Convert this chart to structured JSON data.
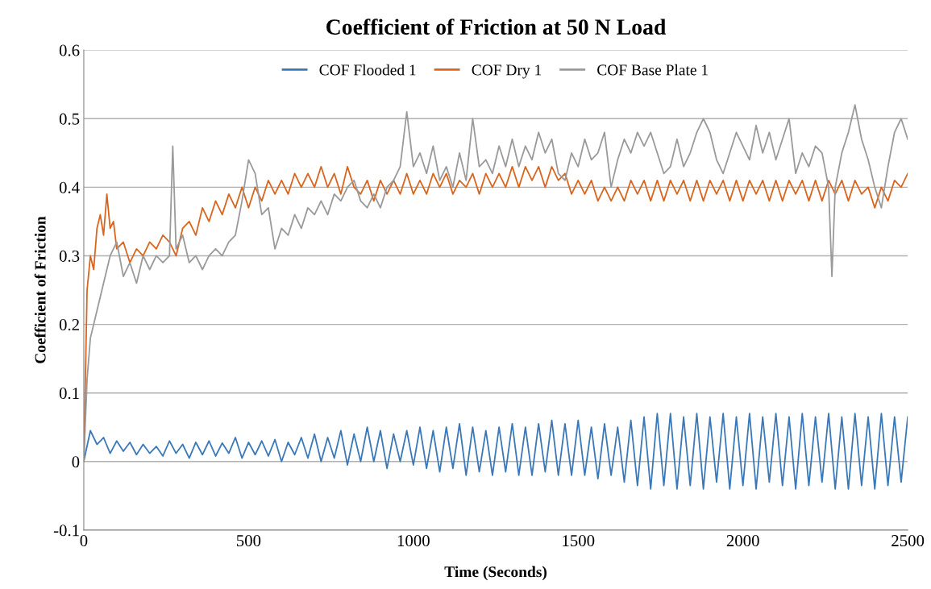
{
  "chart_data": {
    "type": "line",
    "title": "Coefficient of Friction at 50 N Load",
    "xlabel": "Time (Seconds)",
    "ylabel": "Coefficient of Friction",
    "xlim": [
      0,
      2500
    ],
    "xticks": [
      0,
      500,
      1000,
      1500,
      2000,
      2500
    ],
    "ylim": [
      -0.1,
      0.6
    ],
    "yticks": [
      -0.1,
      0,
      0.1,
      0.2,
      0.3,
      0.4,
      0.5,
      0.6
    ],
    "grid": "y",
    "legend": "top",
    "series": [
      {
        "name": "COF Flooded 1",
        "color": "#3a78b8",
        "x": [
          0,
          20,
          40,
          60,
          80,
          100,
          120,
          140,
          160,
          180,
          200,
          220,
          240,
          260,
          280,
          300,
          320,
          340,
          360,
          380,
          400,
          420,
          440,
          460,
          480,
          500,
          520,
          540,
          560,
          580,
          600,
          620,
          640,
          660,
          680,
          700,
          720,
          740,
          760,
          780,
          800,
          820,
          840,
          860,
          880,
          900,
          920,
          940,
          960,
          980,
          1000,
          1020,
          1040,
          1060,
          1080,
          1100,
          1120,
          1140,
          1160,
          1180,
          1200,
          1220,
          1240,
          1260,
          1280,
          1300,
          1320,
          1340,
          1360,
          1380,
          1400,
          1420,
          1440,
          1460,
          1480,
          1500,
          1520,
          1540,
          1560,
          1580,
          1600,
          1620,
          1640,
          1660,
          1680,
          1700,
          1720,
          1740,
          1760,
          1780,
          1800,
          1820,
          1840,
          1860,
          1880,
          1900,
          1920,
          1940,
          1960,
          1980,
          2000,
          2020,
          2040,
          2060,
          2080,
          2100,
          2120,
          2140,
          2160,
          2180,
          2200,
          2220,
          2240,
          2260,
          2280,
          2300,
          2320,
          2340,
          2360,
          2380,
          2400,
          2420,
          2440,
          2460,
          2480,
          2500
        ],
        "values": [
          0,
          0.045,
          0.025,
          0.035,
          0.012,
          0.03,
          0.015,
          0.028,
          0.01,
          0.025,
          0.012,
          0.022,
          0.008,
          0.03,
          0.012,
          0.025,
          0.005,
          0.028,
          0.01,
          0.03,
          0.008,
          0.027,
          0.012,
          0.035,
          0.005,
          0.028,
          0.01,
          0.03,
          0.008,
          0.032,
          0.0,
          0.028,
          0.01,
          0.035,
          0.005,
          0.04,
          0.0,
          0.035,
          0.005,
          0.045,
          -0.005,
          0.04,
          0.0,
          0.05,
          0.0,
          0.045,
          -0.01,
          0.04,
          0.0,
          0.045,
          -0.005,
          0.05,
          -0.01,
          0.045,
          -0.015,
          0.05,
          -0.01,
          0.055,
          -0.02,
          0.05,
          -0.015,
          0.045,
          -0.02,
          0.05,
          -0.015,
          0.055,
          -0.02,
          0.05,
          -0.02,
          0.055,
          -0.015,
          0.06,
          -0.02,
          0.055,
          -0.02,
          0.06,
          -0.02,
          0.05,
          -0.025,
          0.055,
          -0.02,
          0.05,
          -0.03,
          0.06,
          -0.035,
          0.065,
          -0.04,
          0.07,
          -0.035,
          0.07,
          -0.04,
          0.065,
          -0.035,
          0.07,
          -0.04,
          0.065,
          -0.03,
          0.07,
          -0.04,
          0.065,
          -0.035,
          0.07,
          -0.04,
          0.065,
          -0.03,
          0.07,
          -0.035,
          0.065,
          -0.04,
          0.07,
          -0.035,
          0.065,
          -0.03,
          0.07,
          -0.04,
          0.065,
          -0.04,
          0.07,
          -0.035,
          0.065,
          -0.04,
          0.07,
          -0.035,
          0.065,
          -0.03,
          0.065
        ]
      },
      {
        "name": "COF Dry 1",
        "color": "#d9661f",
        "x": [
          0,
          10,
          20,
          30,
          40,
          50,
          60,
          70,
          80,
          90,
          100,
          120,
          140,
          160,
          180,
          200,
          220,
          240,
          260,
          280,
          300,
          320,
          340,
          360,
          380,
          400,
          420,
          440,
          460,
          480,
          500,
          520,
          540,
          560,
          580,
          600,
          620,
          640,
          660,
          680,
          700,
          720,
          740,
          760,
          780,
          800,
          820,
          840,
          860,
          880,
          900,
          920,
          940,
          960,
          980,
          1000,
          1020,
          1040,
          1060,
          1080,
          1100,
          1120,
          1140,
          1160,
          1180,
          1200,
          1220,
          1240,
          1260,
          1280,
          1300,
          1320,
          1340,
          1360,
          1380,
          1400,
          1420,
          1440,
          1460,
          1480,
          1500,
          1520,
          1540,
          1560,
          1580,
          1600,
          1620,
          1640,
          1660,
          1680,
          1700,
          1720,
          1740,
          1760,
          1780,
          1800,
          1820,
          1840,
          1860,
          1880,
          1900,
          1920,
          1940,
          1960,
          1980,
          2000,
          2020,
          2040,
          2060,
          2080,
          2100,
          2120,
          2140,
          2160,
          2180,
          2200,
          2220,
          2240,
          2260,
          2280,
          2300,
          2320,
          2340,
          2360,
          2380,
          2400,
          2420,
          2440,
          2460,
          2480,
          2500
        ],
        "values": [
          0.0,
          0.25,
          0.3,
          0.28,
          0.34,
          0.36,
          0.33,
          0.39,
          0.34,
          0.35,
          0.31,
          0.32,
          0.29,
          0.31,
          0.3,
          0.32,
          0.31,
          0.33,
          0.32,
          0.3,
          0.34,
          0.35,
          0.33,
          0.37,
          0.35,
          0.38,
          0.36,
          0.39,
          0.37,
          0.4,
          0.37,
          0.4,
          0.38,
          0.41,
          0.39,
          0.41,
          0.39,
          0.42,
          0.4,
          0.42,
          0.4,
          0.43,
          0.4,
          0.42,
          0.39,
          0.43,
          0.4,
          0.39,
          0.41,
          0.38,
          0.41,
          0.39,
          0.41,
          0.39,
          0.42,
          0.39,
          0.41,
          0.39,
          0.42,
          0.4,
          0.42,
          0.39,
          0.41,
          0.4,
          0.42,
          0.39,
          0.42,
          0.4,
          0.42,
          0.4,
          0.43,
          0.4,
          0.43,
          0.41,
          0.43,
          0.4,
          0.43,
          0.41,
          0.42,
          0.39,
          0.41,
          0.39,
          0.41,
          0.38,
          0.4,
          0.38,
          0.4,
          0.38,
          0.41,
          0.39,
          0.41,
          0.38,
          0.41,
          0.38,
          0.41,
          0.39,
          0.41,
          0.38,
          0.41,
          0.38,
          0.41,
          0.39,
          0.41,
          0.38,
          0.41,
          0.38,
          0.41,
          0.39,
          0.41,
          0.38,
          0.41,
          0.38,
          0.41,
          0.39,
          0.41,
          0.38,
          0.41,
          0.38,
          0.41,
          0.39,
          0.41,
          0.38,
          0.41,
          0.39,
          0.4,
          0.37,
          0.4,
          0.38,
          0.41,
          0.4,
          0.42
        ]
      },
      {
        "name": "COF Base Plate 1",
        "color": "#9a9a9a",
        "x": [
          0,
          10,
          20,
          40,
          60,
          80,
          100,
          120,
          140,
          160,
          180,
          200,
          220,
          240,
          260,
          270,
          280,
          300,
          320,
          340,
          360,
          380,
          400,
          420,
          440,
          460,
          480,
          500,
          520,
          540,
          560,
          580,
          600,
          620,
          640,
          660,
          680,
          700,
          720,
          740,
          760,
          780,
          800,
          820,
          840,
          860,
          880,
          900,
          920,
          940,
          960,
          980,
          1000,
          1020,
          1040,
          1060,
          1080,
          1100,
          1120,
          1140,
          1160,
          1180,
          1200,
          1220,
          1240,
          1260,
          1280,
          1300,
          1320,
          1340,
          1360,
          1380,
          1400,
          1420,
          1440,
          1460,
          1480,
          1500,
          1520,
          1540,
          1560,
          1580,
          1600,
          1620,
          1640,
          1660,
          1680,
          1700,
          1720,
          1740,
          1760,
          1780,
          1800,
          1820,
          1840,
          1860,
          1880,
          1900,
          1920,
          1940,
          1960,
          1980,
          2000,
          2020,
          2040,
          2060,
          2080,
          2100,
          2120,
          2140,
          2160,
          2180,
          2200,
          2220,
          2240,
          2260,
          2270,
          2280,
          2300,
          2320,
          2340,
          2360,
          2380,
          2400,
          2420,
          2440,
          2460,
          2480,
          2500
        ],
        "values": [
          0.0,
          0.12,
          0.18,
          0.22,
          0.26,
          0.3,
          0.32,
          0.27,
          0.29,
          0.26,
          0.3,
          0.28,
          0.3,
          0.29,
          0.3,
          0.46,
          0.31,
          0.33,
          0.29,
          0.3,
          0.28,
          0.3,
          0.31,
          0.3,
          0.32,
          0.33,
          0.38,
          0.44,
          0.42,
          0.36,
          0.37,
          0.31,
          0.34,
          0.33,
          0.36,
          0.34,
          0.37,
          0.36,
          0.38,
          0.36,
          0.39,
          0.38,
          0.4,
          0.41,
          0.38,
          0.37,
          0.39,
          0.37,
          0.4,
          0.41,
          0.43,
          0.51,
          0.43,
          0.45,
          0.42,
          0.46,
          0.41,
          0.43,
          0.4,
          0.45,
          0.41,
          0.5,
          0.43,
          0.44,
          0.42,
          0.46,
          0.43,
          0.47,
          0.43,
          0.46,
          0.44,
          0.48,
          0.45,
          0.47,
          0.42,
          0.41,
          0.45,
          0.43,
          0.47,
          0.44,
          0.45,
          0.48,
          0.4,
          0.44,
          0.47,
          0.45,
          0.48,
          0.46,
          0.48,
          0.45,
          0.42,
          0.43,
          0.47,
          0.43,
          0.45,
          0.48,
          0.5,
          0.48,
          0.44,
          0.42,
          0.45,
          0.48,
          0.46,
          0.44,
          0.49,
          0.45,
          0.48,
          0.44,
          0.47,
          0.5,
          0.42,
          0.45,
          0.43,
          0.46,
          0.45,
          0.4,
          0.27,
          0.4,
          0.45,
          0.48,
          0.52,
          0.47,
          0.44,
          0.4,
          0.37,
          0.43,
          0.48,
          0.5,
          0.47
        ]
      }
    ]
  }
}
